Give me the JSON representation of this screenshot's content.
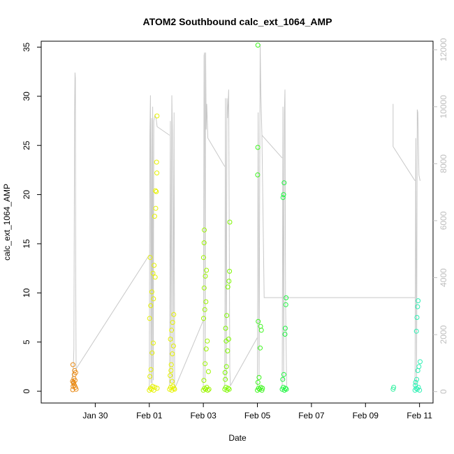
{
  "chart_data": {
    "type": "scatter",
    "title": "ATOM2 Southbound calc_ext_1064_AMP",
    "xlabel": "Date",
    "ylabel": "calc_ext_1064_AMP",
    "y2label": "",
    "xlim": [
      "2017-01-28 00:00",
      "2017-02-11 12:00"
    ],
    "ylim": [
      -1.2,
      35.6
    ],
    "y2lim": [
      -400,
      12300
    ],
    "x_ticks": [
      {
        "date": "2017-01-30",
        "label": "Jan 30"
      },
      {
        "date": "2017-02-01",
        "label": "Feb 01"
      },
      {
        "date": "2017-02-03",
        "label": "Feb 03"
      },
      {
        "date": "2017-02-05",
        "label": "Feb 05"
      },
      {
        "date": "2017-02-07",
        "label": "Feb 07"
      },
      {
        "date": "2017-02-09",
        "label": "Feb 09"
      },
      {
        "date": "2017-02-11",
        "label": "Feb 11"
      }
    ],
    "y_ticks": [
      "0",
      "5",
      "10",
      "15",
      "20",
      "25",
      "30",
      "35"
    ],
    "y2_ticks": [
      "0",
      "2000",
      "4000",
      "6000",
      "8000",
      "10000",
      "12000"
    ],
    "grid": false,
    "legend": "none",
    "colors": {
      "axis": "#000000",
      "secondary_axis": "#bebebe",
      "altitude_line": "#c8c8c8"
    },
    "series": [
      {
        "name": "",
        "color": "#e98a15",
        "points": [
          [
            "2017-01-29 04:00",
            0.15
          ],
          [
            "2017-01-29 04:20",
            0.5
          ],
          [
            "2017-01-29 04:40",
            0.9
          ],
          [
            "2017-01-29 05:00",
            1.3
          ],
          [
            "2017-01-29 05:20",
            1.7
          ],
          [
            "2017-01-29 05:40",
            2.1
          ],
          [
            "2017-01-29 04:10",
            2.7
          ],
          [
            "2017-01-29 04:50",
            0.8
          ],
          [
            "2017-01-29 05:30",
            0.6
          ],
          [
            "2017-01-29 06:00",
            1.1
          ],
          [
            "2017-01-29 06:20",
            0.4
          ],
          [
            "2017-01-29 06:40",
            1.9
          ],
          [
            "2017-01-29 03:50",
            1.0
          ],
          [
            "2017-01-29 07:00",
            0.2
          ]
        ]
      },
      {
        "name": "",
        "color": "#e6f200",
        "points": [
          [
            "2017-02-01 00:00",
            0.1
          ],
          [
            "2017-02-01 01:00",
            0.3
          ],
          [
            "2017-02-01 02:00",
            0.2
          ],
          [
            "2017-02-01 03:00",
            0.5
          ],
          [
            "2017-02-01 04:00",
            0.1
          ],
          [
            "2017-02-01 05:00",
            0.4
          ],
          [
            "2017-02-01 00:30",
            1.5
          ],
          [
            "2017-02-01 01:30",
            2.2
          ],
          [
            "2017-02-01 02:30",
            3.9
          ],
          [
            "2017-02-01 03:30",
            4.9
          ],
          [
            "2017-02-01 00:15",
            7.4
          ],
          [
            "2017-02-01 01:15",
            8.7
          ],
          [
            "2017-02-01 02:15",
            10.1
          ],
          [
            "2017-02-01 03:15",
            12.0
          ],
          [
            "2017-02-01 00:45",
            13.6
          ],
          [
            "2017-02-01 04:15",
            12.8
          ],
          [
            "2017-02-01 05:15",
            11.6
          ],
          [
            "2017-02-01 04:45",
            17.8
          ],
          [
            "2017-02-01 05:45",
            18.6
          ],
          [
            "2017-02-01 06:15",
            20.3
          ],
          [
            "2017-02-01 06:45",
            22.2
          ],
          [
            "2017-02-01 06:30",
            23.3
          ],
          [
            "2017-02-01 06:50",
            28.0
          ],
          [
            "2017-02-01 05:30",
            20.4
          ],
          [
            "2017-02-01 07:00",
            0.3
          ],
          [
            "2017-02-01 03:45",
            9.4
          ]
        ]
      },
      {
        "name": "",
        "color": "#e6f200",
        "points": [
          [
            "2017-02-01 18:00",
            0.2
          ],
          [
            "2017-02-01 19:00",
            0.4
          ],
          [
            "2017-02-01 20:00",
            0.1
          ],
          [
            "2017-02-01 21:00",
            0.5
          ],
          [
            "2017-02-01 22:00",
            0.3
          ],
          [
            "2017-02-01 18:30",
            1.6
          ],
          [
            "2017-02-01 19:30",
            2.7
          ],
          [
            "2017-02-01 20:30",
            3.8
          ],
          [
            "2017-02-01 21:30",
            4.6
          ],
          [
            "2017-02-01 18:45",
            5.3
          ],
          [
            "2017-02-01 19:45",
            6.2
          ],
          [
            "2017-02-01 20:45",
            7.0
          ],
          [
            "2017-02-01 21:45",
            7.8
          ],
          [
            "2017-02-01 22:30",
            0.2
          ],
          [
            "2017-02-01 19:15",
            2.1
          ],
          [
            "2017-02-01 20:15",
            1.0
          ]
        ]
      },
      {
        "name": "",
        "color": "#9cf500",
        "points": [
          [
            "2017-02-03 00:00",
            0.1
          ],
          [
            "2017-02-03 01:00",
            0.3
          ],
          [
            "2017-02-03 02:00",
            0.2
          ],
          [
            "2017-02-03 03:00",
            0.4
          ],
          [
            "2017-02-03 04:00",
            0.1
          ],
          [
            "2017-02-03 00:30",
            1.1
          ],
          [
            "2017-02-03 01:30",
            2.8
          ],
          [
            "2017-02-03 02:30",
            4.3
          ],
          [
            "2017-02-03 03:30",
            5.1
          ],
          [
            "2017-02-03 00:15",
            7.4
          ],
          [
            "2017-02-03 01:15",
            8.3
          ],
          [
            "2017-02-03 02:15",
            9.1
          ],
          [
            "2017-02-03 00:45",
            10.5
          ],
          [
            "2017-02-03 01:45",
            11.7
          ],
          [
            "2017-02-03 02:45",
            12.3
          ],
          [
            "2017-02-03 00:10",
            13.6
          ],
          [
            "2017-02-03 00:40",
            15.1
          ],
          [
            "2017-02-03 00:50",
            16.4
          ],
          [
            "2017-02-03 04:30",
            2.0
          ],
          [
            "2017-02-03 05:00",
            0.2
          ]
        ]
      },
      {
        "name": "",
        "color": "#7ef800",
        "points": [
          [
            "2017-02-03 19:00",
            0.2
          ],
          [
            "2017-02-03 20:00",
            0.4
          ],
          [
            "2017-02-03 21:00",
            0.1
          ],
          [
            "2017-02-03 22:00",
            0.3
          ],
          [
            "2017-02-03 23:00",
            0.2
          ],
          [
            "2017-02-03 19:30",
            1.2
          ],
          [
            "2017-02-03 20:30",
            2.5
          ],
          [
            "2017-02-03 21:30",
            4.1
          ],
          [
            "2017-02-03 22:30",
            5.3
          ],
          [
            "2017-02-03 19:45",
            6.4
          ],
          [
            "2017-02-03 20:45",
            7.7
          ],
          [
            "2017-02-03 21:45",
            10.6
          ],
          [
            "2017-02-03 22:45",
            11.2
          ],
          [
            "2017-02-03 23:15",
            12.2
          ],
          [
            "2017-02-03 23:30",
            17.2
          ],
          [
            "2017-02-03 19:15",
            1.9
          ],
          [
            "2017-02-03 20:15",
            5.1
          ]
        ]
      },
      {
        "name": "",
        "color": "#3df51e",
        "points": [
          [
            "2017-02-05 00:00",
            0.1
          ],
          [
            "2017-02-05 01:00",
            0.3
          ],
          [
            "2017-02-05 02:00",
            0.2
          ],
          [
            "2017-02-05 03:00",
            0.4
          ],
          [
            "2017-02-05 04:00",
            0.1
          ],
          [
            "2017-02-05 00:30",
            0.9
          ],
          [
            "2017-02-05 01:30",
            1.4
          ],
          [
            "2017-02-05 02:30",
            4.4
          ],
          [
            "2017-02-05 03:30",
            6.2
          ],
          [
            "2017-02-05 00:45",
            7.1
          ],
          [
            "2017-02-05 02:45",
            6.6
          ],
          [
            "2017-02-05 00:15",
            22.0
          ],
          [
            "2017-02-05 00:20",
            24.8
          ],
          [
            "2017-02-05 00:25",
            35.2
          ],
          [
            "2017-02-05 04:30",
            0.3
          ]
        ]
      },
      {
        "name": "",
        "color": "#1ef540",
        "points": [
          [
            "2017-02-05 22:00",
            0.2
          ],
          [
            "2017-02-05 23:00",
            0.4
          ],
          [
            "2017-02-06 00:00",
            0.1
          ],
          [
            "2017-02-06 01:00",
            0.3
          ],
          [
            "2017-02-05 22:30",
            1.2
          ],
          [
            "2017-02-05 23:30",
            1.7
          ],
          [
            "2017-02-06 00:30",
            5.8
          ],
          [
            "2017-02-06 00:45",
            6.4
          ],
          [
            "2017-02-06 01:15",
            8.8
          ],
          [
            "2017-02-06 01:30",
            9.5
          ],
          [
            "2017-02-05 22:45",
            19.7
          ],
          [
            "2017-02-05 23:15",
            20.0
          ],
          [
            "2017-02-05 23:45",
            21.2
          ],
          [
            "2017-02-06 01:45",
            0.2
          ]
        ]
      },
      {
        "name": "",
        "color": "#2ef09e",
        "points": [
          [
            "2017-02-10 00:30",
            0.2
          ],
          [
            "2017-02-10 01:00",
            0.4
          ]
        ]
      },
      {
        "name": "",
        "color": "#2ef0b4",
        "points": [
          [
            "2017-02-10 20:00",
            0.1
          ],
          [
            "2017-02-10 21:00",
            0.3
          ],
          [
            "2017-02-10 22:00",
            0.2
          ],
          [
            "2017-02-10 23:00",
            0.4
          ],
          [
            "2017-02-11 00:00",
            0.1
          ],
          [
            "2017-02-10 20:30",
            0.9
          ],
          [
            "2017-02-10 21:30",
            1.2
          ],
          [
            "2017-02-10 22:30",
            2.1
          ],
          [
            "2017-02-10 23:30",
            2.5
          ],
          [
            "2017-02-10 21:15",
            6.1
          ],
          [
            "2017-02-10 21:45",
            7.5
          ],
          [
            "2017-02-10 22:15",
            8.6
          ],
          [
            "2017-02-10 22:45",
            9.2
          ],
          [
            "2017-02-11 00:30",
            3.0
          ],
          [
            "2017-02-10 20:15",
            0.6
          ]
        ]
      }
    ],
    "altitude_series": {
      "name": "",
      "color": "#c8c8c8",
      "axis": "right",
      "segments": [
        [
          [
            "2017-01-29 04:00",
            200
          ],
          [
            "2017-01-29 05:00",
            1500
          ],
          [
            "2017-01-29 05:40",
            9800
          ],
          [
            "2017-01-29 06:00",
            11200
          ],
          [
            "2017-01-29 06:20",
            11000
          ],
          [
            "2017-01-29 06:40",
            4000
          ],
          [
            "2017-01-29 07:00",
            800
          ],
          [
            "2017-02-01 00:00",
            4800
          ]
        ],
        [
          [
            "2017-02-01 00:00",
            100
          ],
          [
            "2017-02-01 00:30",
            9000
          ],
          [
            "2017-02-01 01:00",
            10400
          ],
          [
            "2017-02-01 01:30",
            300
          ],
          [
            "2017-02-01 02:00",
            9600
          ],
          [
            "2017-02-01 02:30",
            200
          ],
          [
            "2017-02-01 03:00",
            10000
          ],
          [
            "2017-02-01 03:30",
            400
          ],
          [
            "2017-02-01 04:00",
            9500
          ],
          [
            "2017-02-01 05:00",
            9700
          ],
          [
            "2017-02-01 06:00",
            9600
          ],
          [
            "2017-02-01 07:00",
            9300
          ],
          [
            "2017-02-01 18:00",
            9000
          ]
        ],
        [
          [
            "2017-02-01 18:00",
            200
          ],
          [
            "2017-02-01 18:40",
            9500
          ],
          [
            "2017-02-01 19:20",
            300
          ],
          [
            "2017-02-01 20:00",
            10400
          ],
          [
            "2017-02-01 20:30",
            9100
          ],
          [
            "2017-02-01 21:00",
            300
          ],
          [
            "2017-02-01 22:00",
            9800
          ],
          [
            "2017-02-01 22:30",
            100
          ]
        ],
        [
          [
            "2017-02-01 22:30",
            100
          ],
          [
            "2017-02-03 00:00",
            2500
          ]
        ],
        [
          [
            "2017-02-03 00:00",
            200
          ],
          [
            "2017-02-03 00:40",
            11800
          ],
          [
            "2017-02-03 01:00",
            11900
          ],
          [
            "2017-02-03 01:30",
            400
          ],
          [
            "2017-02-03 02:00",
            11900
          ],
          [
            "2017-02-03 02:30",
            9200
          ],
          [
            "2017-02-03 03:00",
            10100
          ],
          [
            "2017-02-03 04:00",
            8900
          ],
          [
            "2017-02-03 19:00",
            7900
          ]
        ],
        [
          [
            "2017-02-03 19:00",
            200
          ],
          [
            "2017-02-03 19:40",
            10300
          ],
          [
            "2017-02-03 20:20",
            400
          ],
          [
            "2017-02-03 21:00",
            10300
          ],
          [
            "2017-02-03 21:30",
            9600
          ],
          [
            "2017-02-03 22:30",
            10600
          ],
          [
            "2017-02-03 23:30",
            800
          ],
          [
            "2017-02-04 00:00",
            200
          ]
        ],
        [
          [
            "2017-02-04 00:00",
            200
          ],
          [
            "2017-02-05 00:00",
            1900
          ]
        ],
        [
          [
            "2017-02-05 00:00",
            200
          ],
          [
            "2017-02-05 00:40",
            9800
          ],
          [
            "2017-02-05 01:30",
            500
          ],
          [
            "2017-02-05 02:30",
            12200
          ],
          [
            "2017-02-05 03:00",
            10500
          ],
          [
            "2017-02-05 04:00",
            9000
          ],
          [
            "2017-02-05 22:00",
            8200
          ]
        ],
        [
          [
            "2017-02-05 22:00",
            200
          ],
          [
            "2017-02-05 22:40",
            10000
          ],
          [
            "2017-02-05 23:20",
            400
          ],
          [
            "2017-02-06 00:00",
            9800
          ],
          [
            "2017-02-06 00:30",
            10600
          ],
          [
            "2017-02-06 01:00",
            3200
          ],
          [
            "2017-02-06 02:00",
            200
          ]
        ],
        [
          [
            "2017-02-05 04:00",
            9000
          ],
          [
            "2017-02-05 06:00",
            3300
          ],
          [
            "2017-02-10 20:00",
            3300
          ]
        ],
        [
          [
            "2017-02-10 00:30",
            10100
          ],
          [
            "2017-02-10 00:30",
            8600
          ],
          [
            "2017-02-10 20:00",
            7400
          ]
        ],
        [
          [
            "2017-02-10 20:00",
            200
          ],
          [
            "2017-02-10 20:40",
            8900
          ],
          [
            "2017-02-10 21:20",
            300
          ],
          [
            "2017-02-10 22:00",
            9900
          ],
          [
            "2017-02-10 22:30",
            9800
          ],
          [
            "2017-02-10 23:30",
            7600
          ],
          [
            "2017-02-11 00:30",
            7400
          ]
        ]
      ]
    }
  }
}
